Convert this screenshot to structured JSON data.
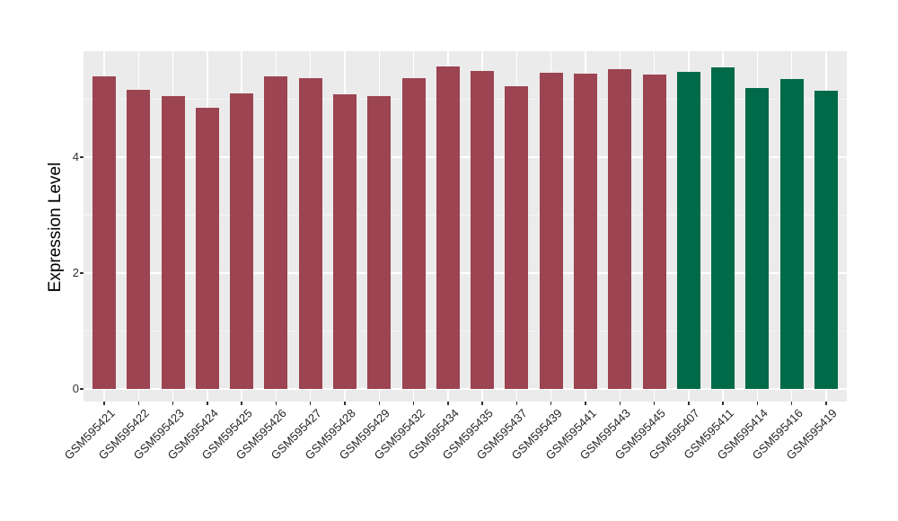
{
  "figure": {
    "background": "#FFFFFF",
    "panel_background": "#EBEBEB",
    "grid_major_color": "#FFFFFF",
    "grid_minor_color": "#F5F5F5",
    "axis_text_color": "#303030",
    "axis_title_color": "#000000",
    "tick_mark_color": "#333333",
    "bar_color_red": "#9C4451",
    "bar_color_green": "#016A49"
  },
  "chart_data": {
    "type": "bar",
    "title": "",
    "xlabel": "",
    "ylabel": "Expression Level",
    "categories": [
      "GSM595421",
      "GSM595422",
      "GSM595423",
      "GSM595424",
      "GSM595425",
      "GSM595426",
      "GSM595427",
      "GSM595428",
      "GSM595429",
      "GSM595432",
      "GSM595434",
      "GSM595435",
      "GSM595437",
      "GSM595439",
      "GSM595441",
      "GSM595443",
      "GSM595445",
      "GSM595407",
      "GSM595411",
      "GSM595414",
      "GSM595416",
      "GSM595419"
    ],
    "values": [
      5.4,
      5.16,
      5.05,
      4.85,
      5.1,
      5.4,
      5.36,
      5.09,
      5.05,
      5.36,
      5.57,
      5.49,
      5.22,
      5.46,
      5.44,
      5.52,
      5.43,
      5.47,
      5.55,
      5.19,
      5.35,
      5.15
    ],
    "bar_colors": [
      "#9C4451",
      "#9C4451",
      "#9C4451",
      "#9C4451",
      "#9C4451",
      "#9C4451",
      "#9C4451",
      "#9C4451",
      "#9C4451",
      "#9C4451",
      "#9C4451",
      "#9C4451",
      "#9C4451",
      "#9C4451",
      "#9C4451",
      "#9C4451",
      "#9C4451",
      "#016A49",
      "#016A49",
      "#016A49",
      "#016A49",
      "#016A49"
    ],
    "ylim": [
      0,
      5.83
    ],
    "yticks": [
      0,
      2,
      4
    ],
    "minor_gridlines": [
      1,
      3,
      5
    ],
    "grid": true,
    "legend_position": "none",
    "x_tick_rotation": 45
  }
}
